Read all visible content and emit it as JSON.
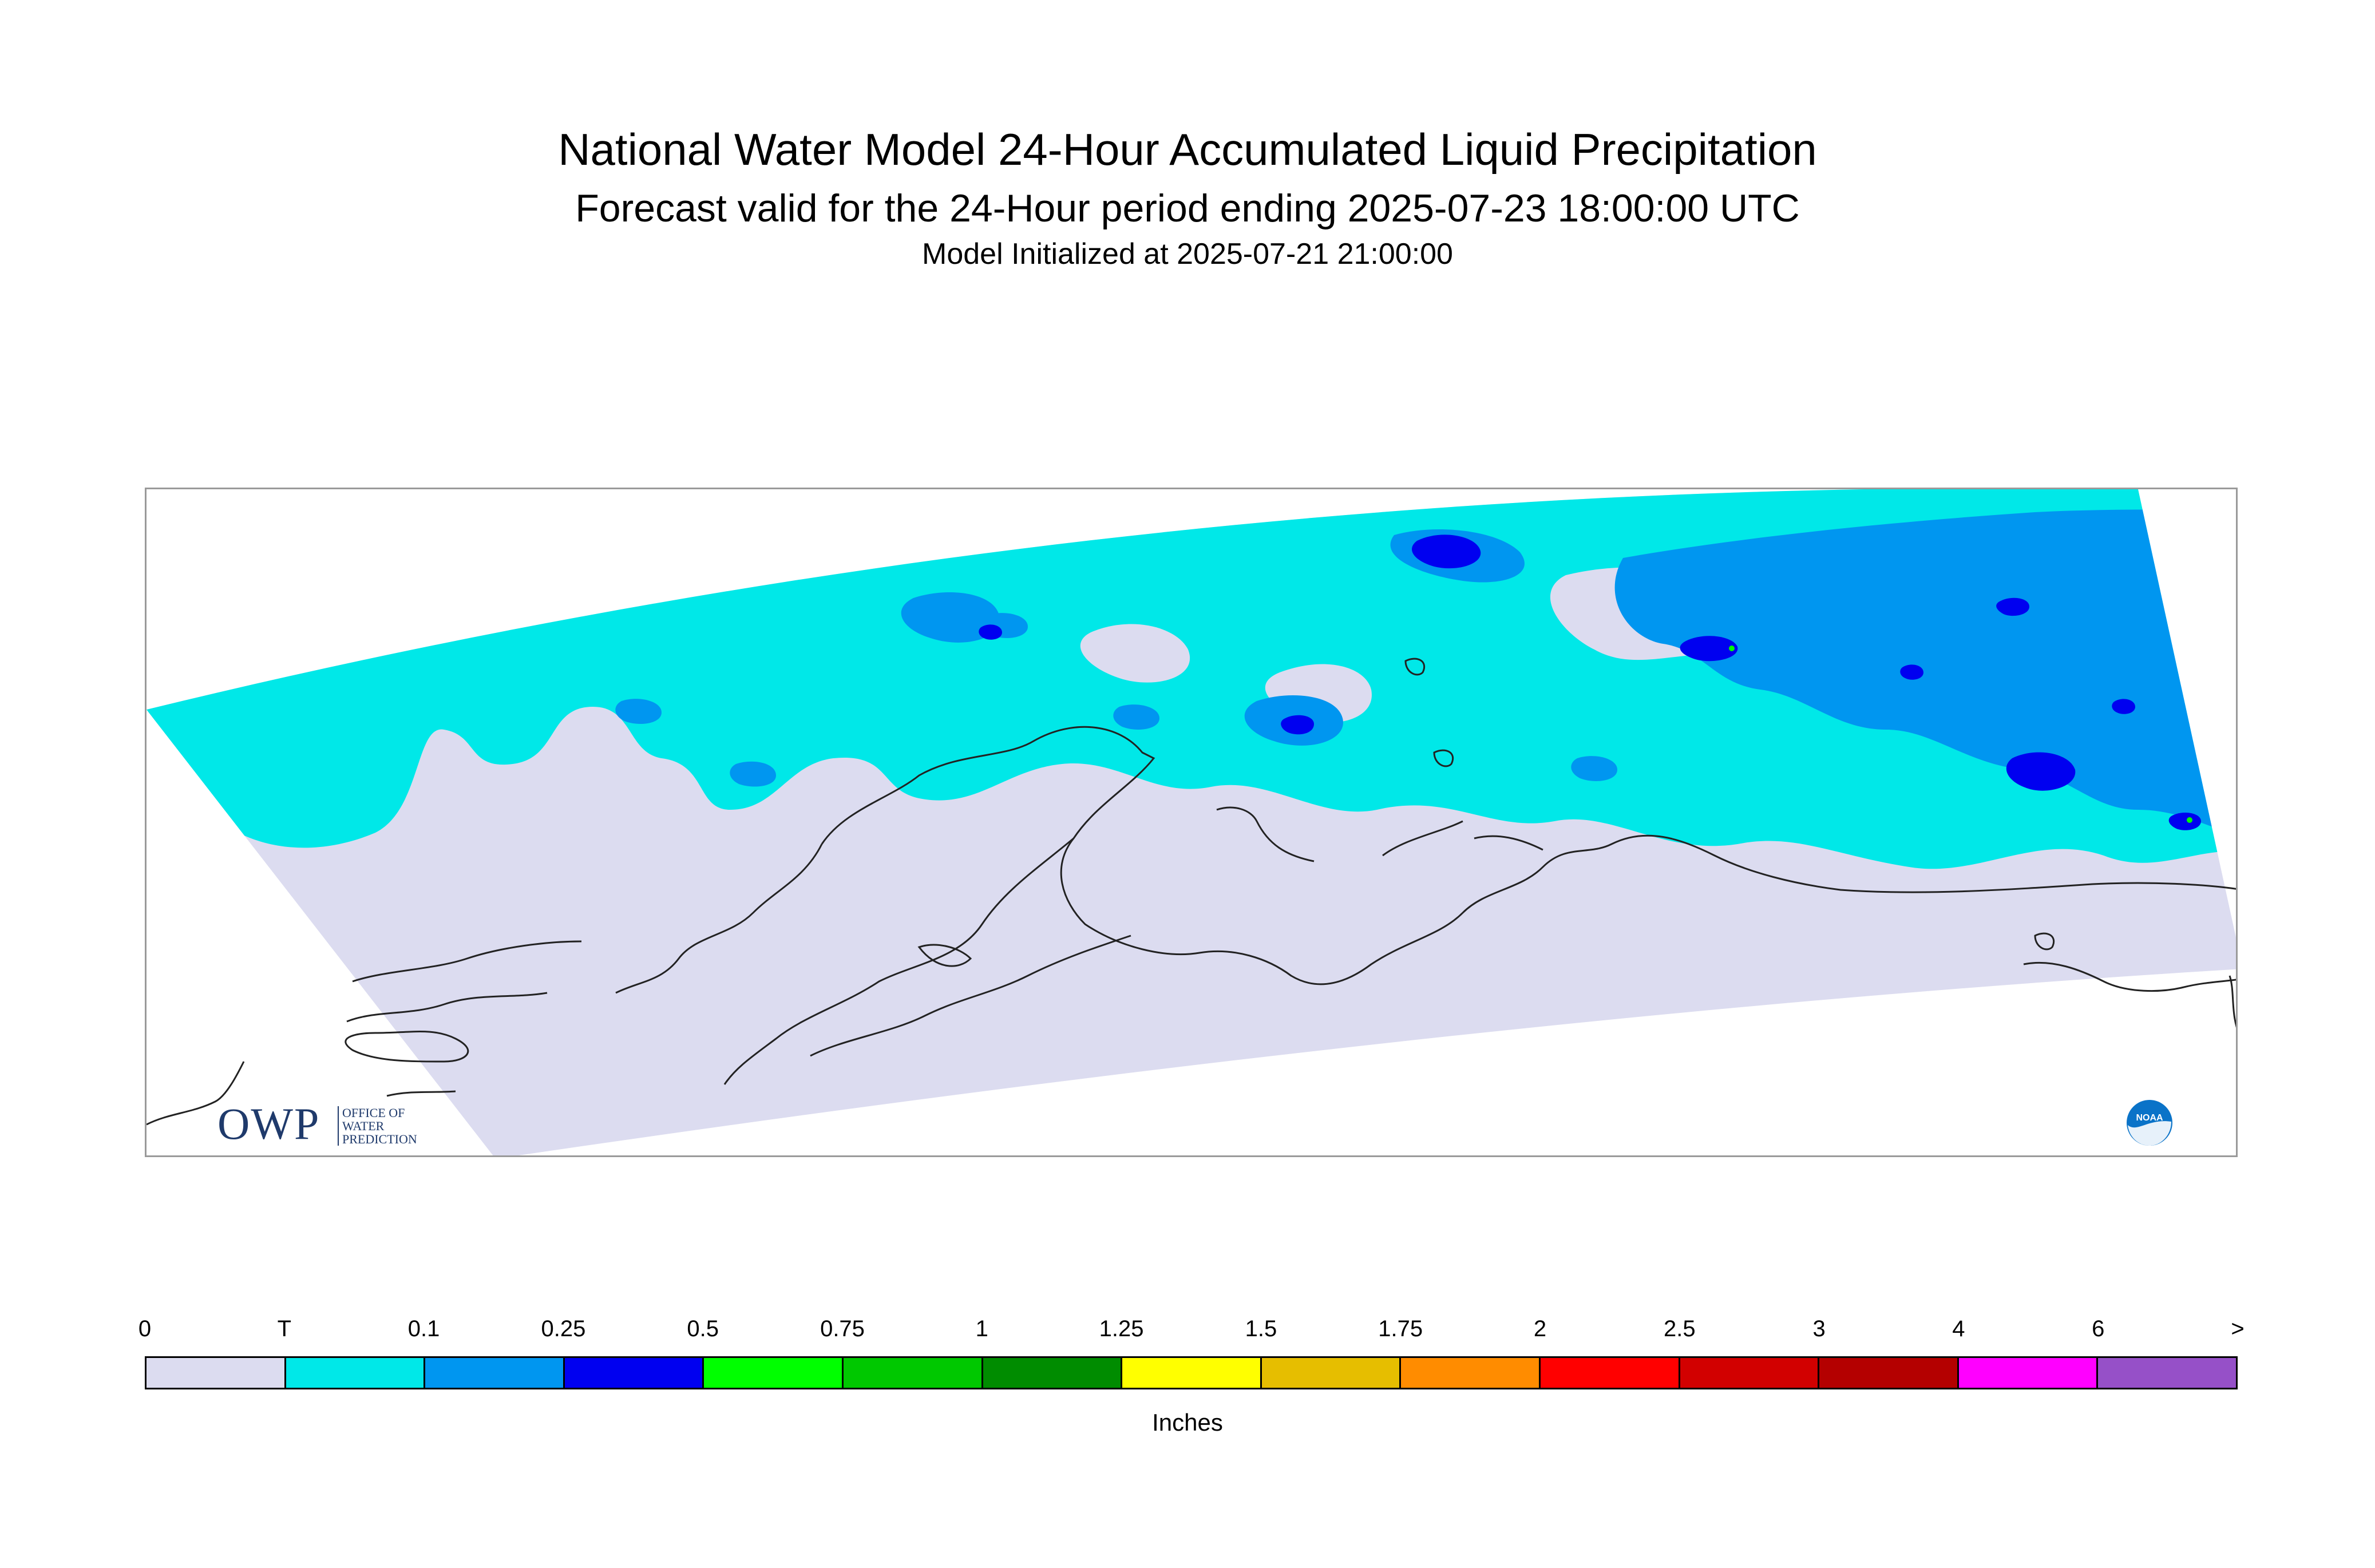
{
  "title": "National Water Model 24-Hour Accumulated Liquid Precipitation",
  "subtitle": "Forecast valid for the 24-Hour period ending 2025-07-23 18:00:00 UTC",
  "initialized": "Model Initialized at 2025-07-21 21:00:00",
  "logos": {
    "owp_mark": "OWP",
    "owp_text": "OFFICE OF WATER PREDICTION",
    "noaa_text": "NOAA"
  },
  "legend": {
    "units": "Inches",
    "tick_labels": [
      "0",
      "T",
      "0.1",
      "0.25",
      "0.5",
      "0.75",
      "1",
      "1.25",
      "1.5",
      "1.75",
      "2",
      "2.5",
      "3",
      "4",
      "6",
      ">"
    ],
    "colors": [
      "#dcdcf0",
      "#00e8e8",
      "#0096f0",
      "#0000f0",
      "#00ff00",
      "#00c800",
      "#008c00",
      "#ffff00",
      "#e6be00",
      "#ff8c00",
      "#ff0000",
      "#d20000",
      "#b40000",
      "#ff00ff",
      "#9650c8"
    ]
  },
  "map_colors": {
    "domain": "#dcdcf0",
    "trace": "#00e8e8",
    "light": "#0096f0",
    "moderate": "#0000f0",
    "green": "#00ff00",
    "coast": "#222222"
  }
}
